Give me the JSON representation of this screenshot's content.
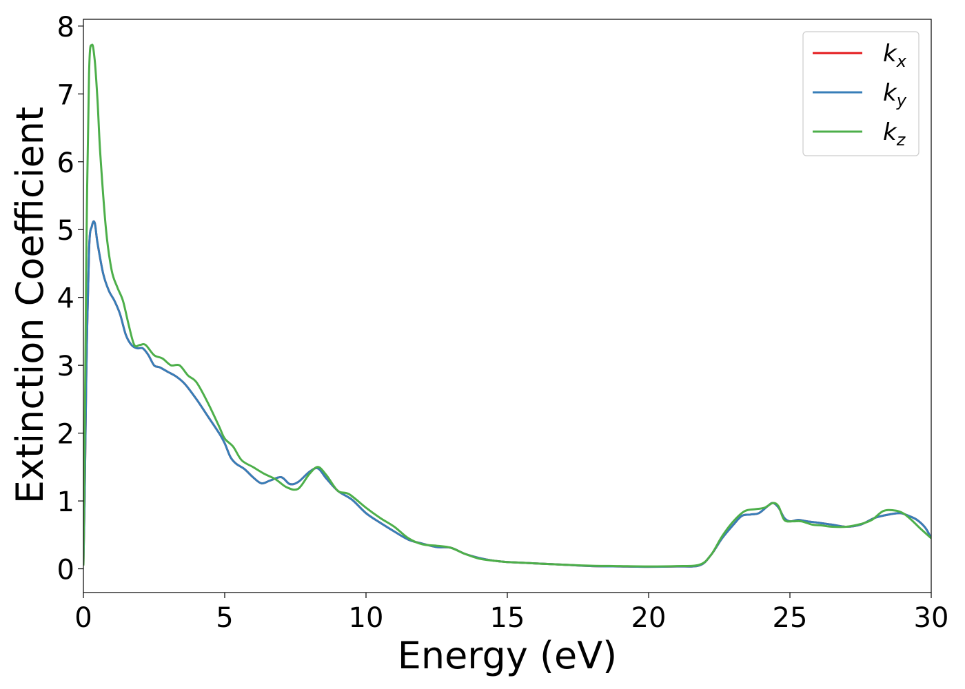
{
  "chart_data": {
    "type": "line",
    "title": "",
    "xlabel": "Energy (eV)",
    "ylabel": "Extinction Coefficient",
    "xlim": [
      0,
      30
    ],
    "ylim": [
      -0.35,
      8.1
    ],
    "xticks": [
      0,
      5,
      10,
      15,
      20,
      25,
      30
    ],
    "yticks": [
      0,
      1,
      2,
      3,
      4,
      5,
      6,
      7,
      8
    ],
    "grid": false,
    "legend_position": "top-right",
    "series": [
      {
        "name": "k_x",
        "label_main": "k",
        "label_sub": "x",
        "color": "#e41a1c",
        "x": [
          0,
          0.05,
          0.1,
          0.2,
          0.3,
          0.4,
          0.5,
          0.7,
          0.9,
          1.1,
          1.3,
          1.5,
          1.7,
          1.9,
          2.1,
          2.3,
          2.5,
          2.7,
          3.0,
          3.3,
          3.6,
          4.0,
          4.4,
          4.8,
          5.0,
          5.2,
          5.4,
          5.7,
          6.0,
          6.3,
          6.6,
          7.0,
          7.3,
          7.6,
          8.0,
          8.3,
          8.6,
          9.0,
          9.5,
          10.0,
          10.5,
          11.0,
          11.5,
          12.0,
          12.5,
          13.0,
          13.5,
          14.0,
          14.5,
          15.0,
          16.0,
          17.0,
          18.0,
          19.0,
          20.0,
          21.0,
          21.8,
          22.2,
          22.6,
          23.0,
          23.3,
          23.6,
          23.9,
          24.2,
          24.4,
          24.6,
          24.8,
          25.0,
          25.3,
          25.6,
          26.0,
          26.5,
          27.0,
          27.5,
          28.0,
          28.5,
          28.9,
          29.2,
          29.5,
          29.8,
          30.0
        ],
        "y": [
          0.05,
          1.2,
          2.8,
          4.7,
          5.05,
          5.1,
          4.8,
          4.35,
          4.1,
          3.95,
          3.75,
          3.45,
          3.3,
          3.25,
          3.25,
          3.15,
          3.0,
          2.97,
          2.9,
          2.83,
          2.72,
          2.5,
          2.25,
          2.0,
          1.85,
          1.65,
          1.55,
          1.47,
          1.35,
          1.26,
          1.3,
          1.35,
          1.25,
          1.28,
          1.43,
          1.48,
          1.33,
          1.15,
          1.02,
          0.82,
          0.68,
          0.55,
          0.43,
          0.37,
          0.32,
          0.31,
          0.22,
          0.16,
          0.12,
          0.1,
          0.08,
          0.06,
          0.04,
          0.035,
          0.03,
          0.035,
          0.05,
          0.2,
          0.45,
          0.65,
          0.78,
          0.8,
          0.82,
          0.92,
          0.97,
          0.9,
          0.75,
          0.7,
          0.72,
          0.7,
          0.68,
          0.65,
          0.62,
          0.65,
          0.75,
          0.8,
          0.82,
          0.78,
          0.72,
          0.6,
          0.45
        ]
      },
      {
        "name": "k_y",
        "label_main": "k",
        "label_sub": "y",
        "color": "#377eb8",
        "x": [
          0,
          0.05,
          0.1,
          0.2,
          0.3,
          0.4,
          0.5,
          0.7,
          0.9,
          1.1,
          1.3,
          1.5,
          1.7,
          1.9,
          2.1,
          2.3,
          2.5,
          2.7,
          3.0,
          3.3,
          3.6,
          4.0,
          4.4,
          4.8,
          5.0,
          5.2,
          5.4,
          5.7,
          6.0,
          6.3,
          6.6,
          7.0,
          7.3,
          7.6,
          8.0,
          8.3,
          8.6,
          9.0,
          9.5,
          10.0,
          10.5,
          11.0,
          11.5,
          12.0,
          12.5,
          13.0,
          13.5,
          14.0,
          14.5,
          15.0,
          16.0,
          17.0,
          18.0,
          19.0,
          20.0,
          21.0,
          21.8,
          22.2,
          22.6,
          23.0,
          23.3,
          23.6,
          23.9,
          24.2,
          24.4,
          24.6,
          24.8,
          25.0,
          25.3,
          25.6,
          26.0,
          26.5,
          27.0,
          27.5,
          28.0,
          28.5,
          28.9,
          29.2,
          29.5,
          29.8,
          30.0
        ],
        "y": [
          0.05,
          1.2,
          2.8,
          4.7,
          5.05,
          5.1,
          4.8,
          4.35,
          4.1,
          3.95,
          3.75,
          3.45,
          3.3,
          3.25,
          3.25,
          3.15,
          3.0,
          2.97,
          2.9,
          2.83,
          2.72,
          2.5,
          2.25,
          2.0,
          1.85,
          1.65,
          1.55,
          1.47,
          1.35,
          1.26,
          1.3,
          1.35,
          1.25,
          1.28,
          1.43,
          1.48,
          1.33,
          1.15,
          1.02,
          0.82,
          0.68,
          0.55,
          0.43,
          0.37,
          0.32,
          0.31,
          0.22,
          0.16,
          0.12,
          0.1,
          0.08,
          0.06,
          0.04,
          0.035,
          0.03,
          0.035,
          0.05,
          0.2,
          0.45,
          0.65,
          0.78,
          0.8,
          0.82,
          0.92,
          0.97,
          0.9,
          0.75,
          0.7,
          0.72,
          0.7,
          0.68,
          0.65,
          0.62,
          0.65,
          0.75,
          0.8,
          0.82,
          0.78,
          0.72,
          0.6,
          0.45
        ]
      },
      {
        "name": "k_z",
        "label_main": "k",
        "label_sub": "z",
        "color": "#4daf4a",
        "x": [
          0,
          0.05,
          0.1,
          0.2,
          0.3,
          0.4,
          0.5,
          0.6,
          0.8,
          1.0,
          1.2,
          1.4,
          1.6,
          1.8,
          2.0,
          2.2,
          2.5,
          2.8,
          3.1,
          3.4,
          3.7,
          4.0,
          4.4,
          4.8,
          5.0,
          5.3,
          5.6,
          6.0,
          6.4,
          6.8,
          7.2,
          7.6,
          8.0,
          8.3,
          8.6,
          9.0,
          9.4,
          10.0,
          10.5,
          11.0,
          11.5,
          12.0,
          12.5,
          13.0,
          13.5,
          14.0,
          14.5,
          15.0,
          16.0,
          17.0,
          18.0,
          19.0,
          20.0,
          21.0,
          21.8,
          22.2,
          22.6,
          23.0,
          23.4,
          23.8,
          24.1,
          24.4,
          24.6,
          24.8,
          25.1,
          25.4,
          25.8,
          26.1,
          26.5,
          27.0,
          27.5,
          27.9,
          28.3,
          28.7,
          29.0,
          29.3,
          29.6,
          30.0
        ],
        "y": [
          0.05,
          2.0,
          4.5,
          7.3,
          7.72,
          7.5,
          6.9,
          6.1,
          5.0,
          4.4,
          4.15,
          3.95,
          3.6,
          3.3,
          3.3,
          3.3,
          3.15,
          3.1,
          3.0,
          3.0,
          2.85,
          2.75,
          2.45,
          2.1,
          1.92,
          1.8,
          1.6,
          1.5,
          1.4,
          1.32,
          1.2,
          1.18,
          1.4,
          1.5,
          1.38,
          1.15,
          1.1,
          0.9,
          0.75,
          0.62,
          0.45,
          0.36,
          0.34,
          0.31,
          0.22,
          0.15,
          0.12,
          0.1,
          0.08,
          0.06,
          0.045,
          0.04,
          0.035,
          0.04,
          0.06,
          0.2,
          0.48,
          0.7,
          0.85,
          0.88,
          0.9,
          0.97,
          0.92,
          0.72,
          0.7,
          0.7,
          0.65,
          0.64,
          0.62,
          0.62,
          0.66,
          0.72,
          0.85,
          0.86,
          0.82,
          0.72,
          0.6,
          0.45
        ]
      }
    ]
  }
}
